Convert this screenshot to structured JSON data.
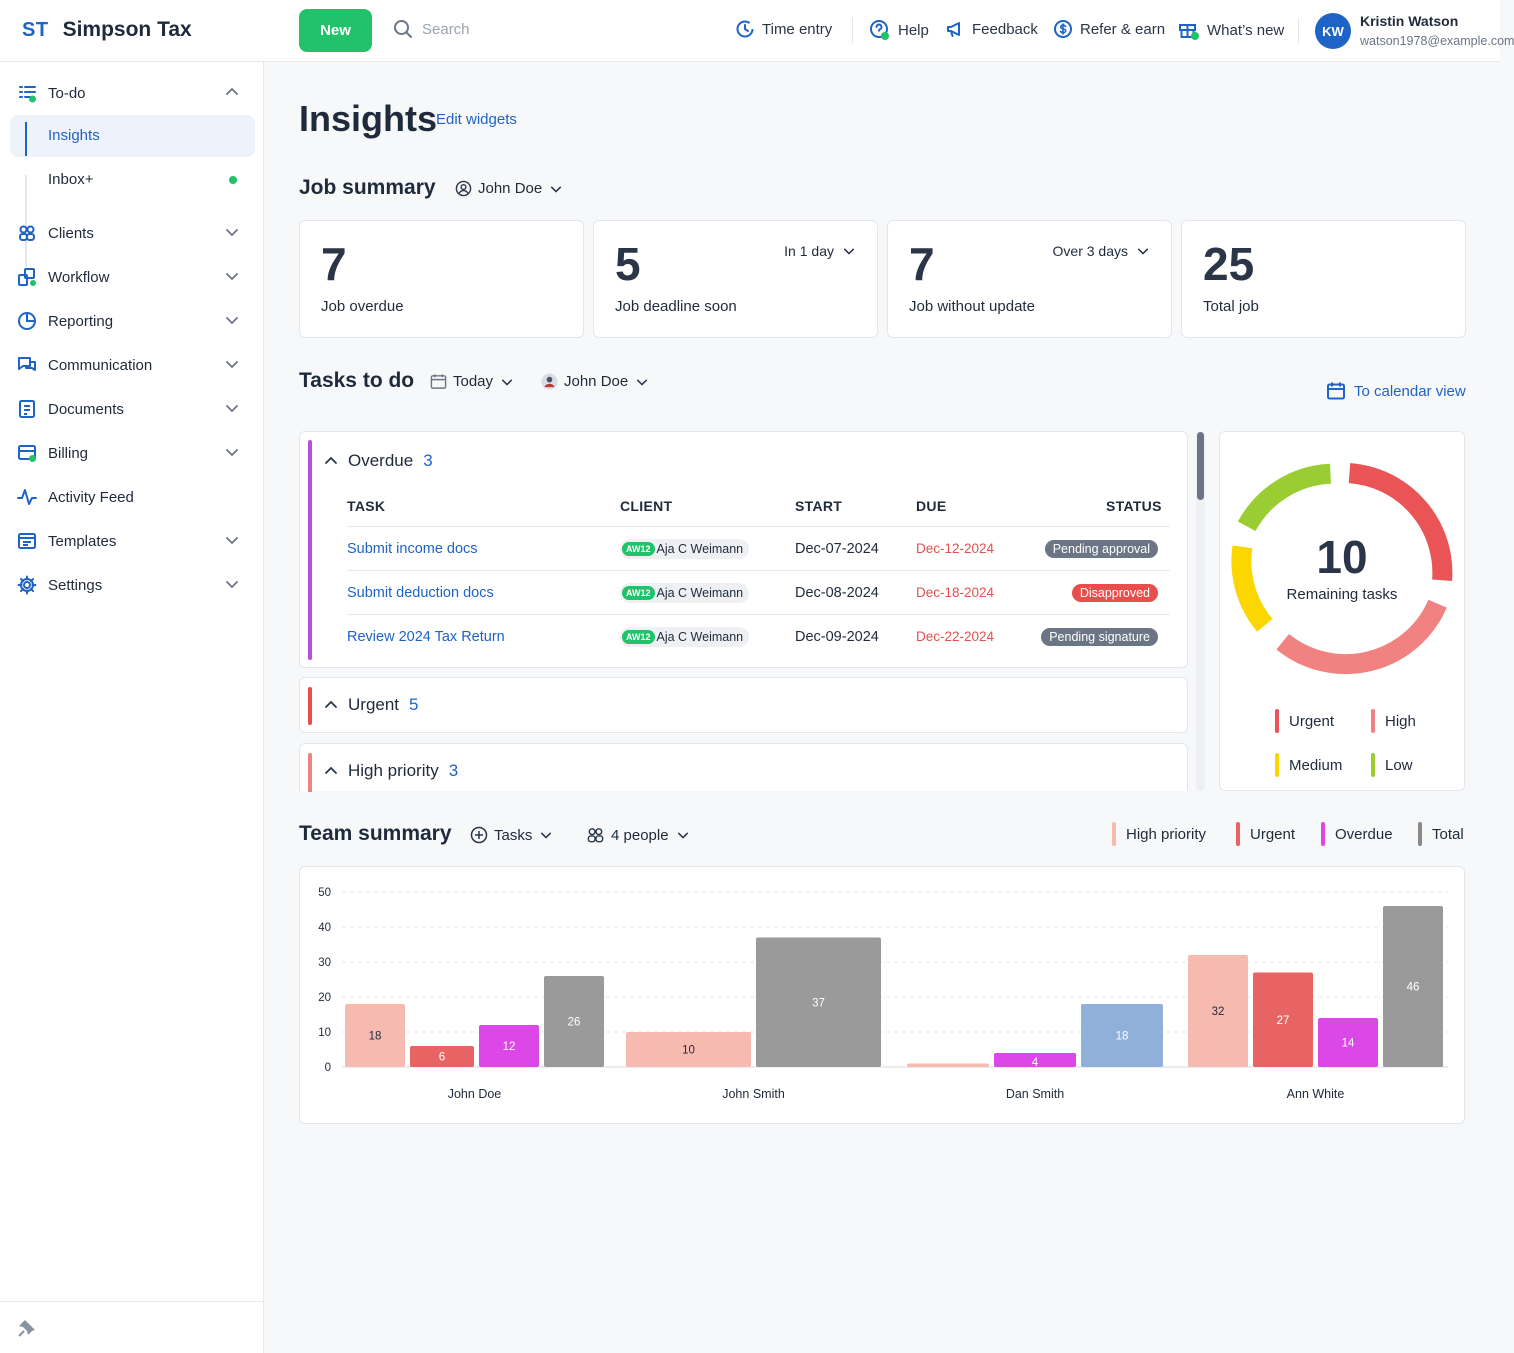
{
  "app": {
    "logo": "ST",
    "name": "Simpson Tax"
  },
  "topbar": {
    "new_label": "New",
    "search_placeholder": "Search",
    "time_entry": "Time entry",
    "help": "Help",
    "feedback": "Feedback",
    "refer": "Refer & earn",
    "whats_new": "What’s new",
    "user": {
      "initials": "KW",
      "name": "Kristin Watson",
      "email": "watson1978@example.com"
    }
  },
  "sidebar": {
    "todo": "To-do",
    "insights": "Insights",
    "inbox": "Inbox+",
    "clients": "Clients",
    "workflow": "Workflow",
    "reporting": "Reporting",
    "communication": "Communication",
    "documents": "Documents",
    "billing": "Billing",
    "activity": "Activity Feed",
    "templates": "Templates",
    "settings": "Settings"
  },
  "page": {
    "title": "Insights",
    "edit_widgets": "Edit widgets"
  },
  "job_summary": {
    "title": "Job summary",
    "person": "John Doe",
    "cards": [
      {
        "value": "7",
        "label": "Job overdue"
      },
      {
        "value": "5",
        "label": "Job deadline soon",
        "filter": "In 1 day"
      },
      {
        "value": "7",
        "label": "Job without update",
        "filter": "Over 3 days"
      },
      {
        "value": "25",
        "label": "Total job"
      }
    ]
  },
  "tasks": {
    "title": "Tasks to do",
    "period": "Today",
    "person": "John Doe",
    "calendar_link": "To calendar view",
    "columns": {
      "task": "TASK",
      "client": "CLIENT",
      "start": "START",
      "due": "DUE",
      "status": "STATUS"
    },
    "groups": {
      "overdue": {
        "label": "Overdue",
        "count": "3"
      },
      "urgent": {
        "label": "Urgent",
        "count": "5"
      },
      "high": {
        "label": "High priority",
        "count": "3"
      }
    },
    "rows": [
      {
        "task": "Submit income docs",
        "client_code": "AW12",
        "client": "Aja C Weimann",
        "start": "Dec-07-2024",
        "due": "Dec-12-2024",
        "status": "Pending approval"
      },
      {
        "task": "Submit deduction docs",
        "client_code": "AW12",
        "client": "Aja C Weimann",
        "start": "Dec-08-2024",
        "due": "Dec-18-2024",
        "status": "Disapproved"
      },
      {
        "task": "Review 2024 Tax Return",
        "client_code": "AW12",
        "client": "Aja C Weimann",
        "start": "Dec-09-2024",
        "due": "Dec-22-2024",
        "status": "Pending signature"
      }
    ],
    "status_colors": {
      "pending": "#6b7585",
      "disapproved": "#e84f4c"
    }
  },
  "remaining": {
    "value": "10",
    "label": "Remaining tasks",
    "legend": {
      "urgent": "Urgent",
      "high": "High",
      "medium": "Medium",
      "low": "Low"
    },
    "colors": {
      "urgent": "#ea5456",
      "high": "#f28282",
      "medium": "#fcd600",
      "low": "#9acd32"
    }
  },
  "team_summary": {
    "title": "Team summary",
    "metric": "Tasks",
    "people": "4 people",
    "legend": {
      "high": "High priority",
      "urgent": "Urgent",
      "overdue": "Overdue",
      "total": "Total"
    }
  },
  "chart_data": {
    "type": "bar",
    "title": "Team summary",
    "categories": [
      "John Doe",
      "John Smith",
      "Dan Smith",
      "Ann White"
    ],
    "yticks": [
      "0",
      "10",
      "20",
      "30",
      "40",
      "50"
    ],
    "ylim": [
      0,
      50
    ],
    "series": [
      {
        "name": "High priority",
        "color": "#f7bab1",
        "values": [
          18,
          10,
          1,
          32
        ],
        "labels": [
          "18",
          "10",
          "",
          "32"
        ]
      },
      {
        "name": "Urgent",
        "color": "#e86464",
        "values": [
          6,
          null,
          null,
          27
        ],
        "labels": [
          "6",
          "",
          "",
          "27"
        ]
      },
      {
        "name": "Overdue",
        "color": "#dc48e8",
        "values": [
          12,
          null,
          4,
          14
        ],
        "labels": [
          "12",
          "",
          "4",
          "14"
        ]
      },
      {
        "name": "Total",
        "color": "#9a9a9a",
        "values": [
          26,
          37,
          18,
          46
        ],
        "labels": [
          "26",
          "37",
          "18",
          "46"
        ],
        "alt_color": "#8fb0d9"
      }
    ]
  }
}
